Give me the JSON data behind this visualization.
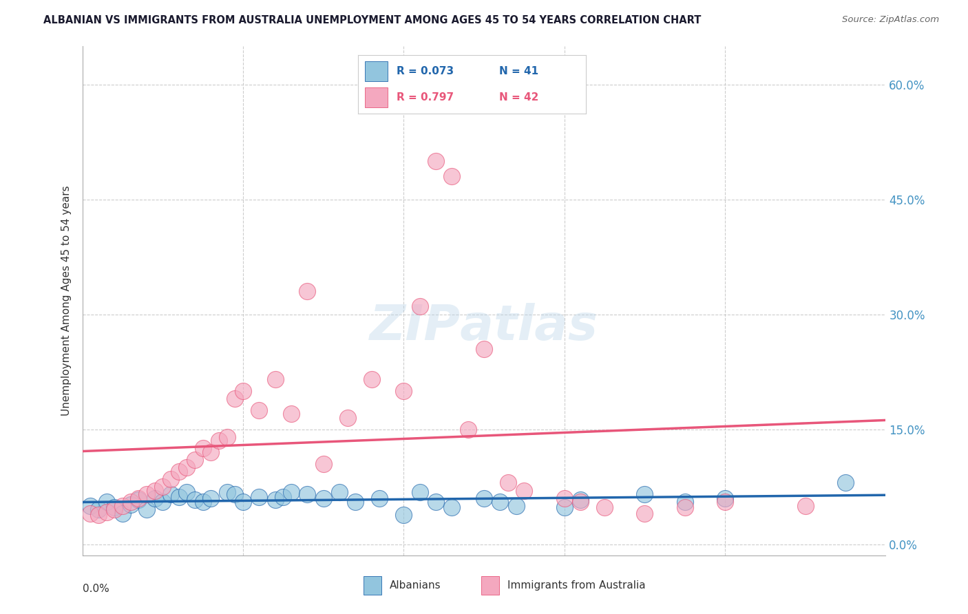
{
  "title": "ALBANIAN VS IMMIGRANTS FROM AUSTRALIA UNEMPLOYMENT AMONG AGES 45 TO 54 YEARS CORRELATION CHART",
  "source": "Source: ZipAtlas.com",
  "ylabel": "Unemployment Among Ages 45 to 54 years",
  "legend_r1": "R = 0.073",
  "legend_n1": "N = 41",
  "legend_r2": "R = 0.797",
  "legend_n2": "N = 42",
  "legend_label1": "Albanians",
  "legend_label2": "Immigrants from Australia",
  "color_blue": "#92c5de",
  "color_pink": "#f4a8bf",
  "color_blue_dark": "#2166ac",
  "color_pink_dark": "#e8567a",
  "color_grid": "#cccccc",
  "color_raxis": "#4393c3",
  "background": "#ffffff",
  "xlim": [
    0.0,
    0.1
  ],
  "ylim": [
    -0.015,
    0.65
  ],
  "yticks": [
    0.0,
    0.15,
    0.3,
    0.45,
    0.6
  ],
  "ytick_labels": [
    "0.0%",
    "15.0%",
    "30.0%",
    "45.0%",
    "60.0%"
  ],
  "albanians_x": [
    0.001,
    0.002,
    0.003,
    0.004,
    0.005,
    0.006,
    0.007,
    0.008,
    0.009,
    0.01,
    0.011,
    0.012,
    0.013,
    0.014,
    0.015,
    0.016,
    0.018,
    0.019,
    0.02,
    0.022,
    0.024,
    0.025,
    0.026,
    0.028,
    0.03,
    0.032,
    0.034,
    0.037,
    0.04,
    0.042,
    0.044,
    0.046,
    0.05,
    0.052,
    0.054,
    0.06,
    0.062,
    0.07,
    0.075,
    0.08,
    0.095
  ],
  "albanians_y": [
    0.05,
    0.045,
    0.055,
    0.048,
    0.04,
    0.052,
    0.058,
    0.045,
    0.06,
    0.055,
    0.065,
    0.062,
    0.068,
    0.058,
    0.055,
    0.06,
    0.068,
    0.065,
    0.055,
    0.062,
    0.058,
    0.062,
    0.068,
    0.065,
    0.06,
    0.068,
    0.055,
    0.06,
    0.038,
    0.068,
    0.055,
    0.048,
    0.06,
    0.055,
    0.05,
    0.048,
    0.058,
    0.065,
    0.055,
    0.06,
    0.08
  ],
  "immigrants_x": [
    0.001,
    0.002,
    0.003,
    0.004,
    0.005,
    0.006,
    0.007,
    0.008,
    0.009,
    0.01,
    0.011,
    0.012,
    0.013,
    0.014,
    0.015,
    0.016,
    0.017,
    0.018,
    0.019,
    0.02,
    0.022,
    0.024,
    0.026,
    0.028,
    0.03,
    0.033,
    0.036,
    0.04,
    0.042,
    0.044,
    0.046,
    0.048,
    0.05,
    0.053,
    0.055,
    0.06,
    0.062,
    0.065,
    0.07,
    0.075,
    0.08,
    0.09
  ],
  "immigrants_y": [
    0.04,
    0.038,
    0.042,
    0.045,
    0.05,
    0.055,
    0.06,
    0.065,
    0.07,
    0.075,
    0.085,
    0.095,
    0.1,
    0.11,
    0.125,
    0.12,
    0.135,
    0.14,
    0.19,
    0.2,
    0.175,
    0.215,
    0.17,
    0.33,
    0.105,
    0.165,
    0.215,
    0.2,
    0.31,
    0.5,
    0.48,
    0.15,
    0.255,
    0.08,
    0.07,
    0.06,
    0.055,
    0.048,
    0.04,
    0.048,
    0.055,
    0.05
  ]
}
